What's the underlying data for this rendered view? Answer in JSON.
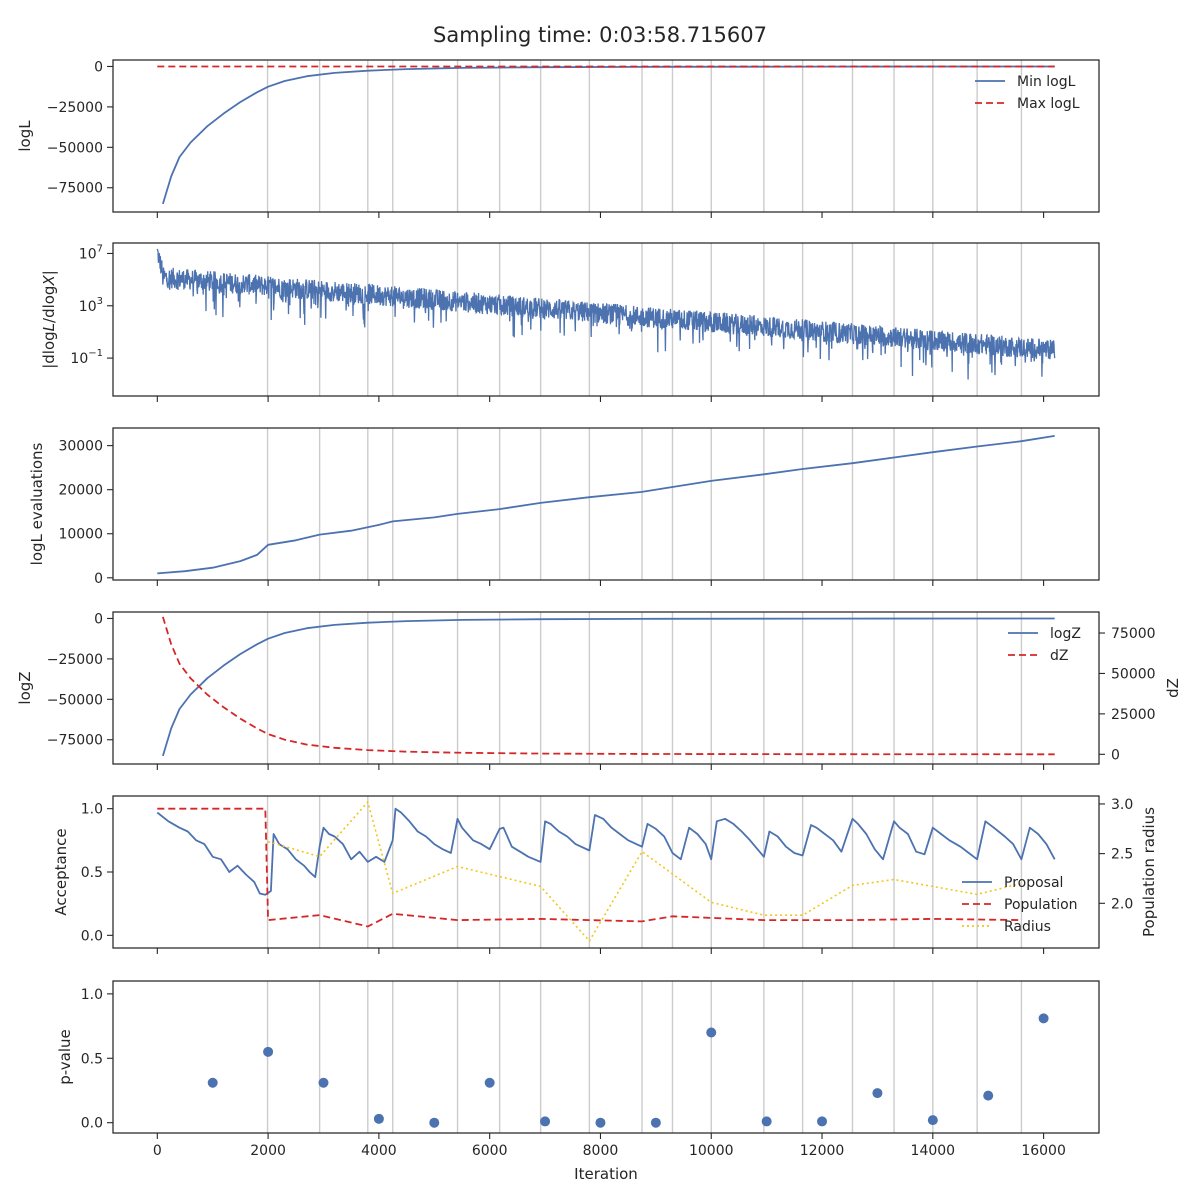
{
  "title": "Sampling time: 0:03:58.715607",
  "colors": {
    "blue": "#4c72b0",
    "red": "#d62728",
    "yellow": "#f5c518",
    "grid": "#cccccc",
    "axis": "#262626"
  },
  "x_axis": {
    "label": "Iteration",
    "range": [
      -800,
      17000
    ],
    "ticks": [
      0,
      2000,
      4000,
      6000,
      8000,
      10000,
      12000,
      14000,
      16000
    ],
    "tick_labels": [
      "0",
      "2000",
      "4000",
      "6000",
      "8000",
      "10000",
      "12000",
      "14000",
      "16000"
    ]
  },
  "vertical_markers": [
    1990,
    2930,
    3800,
    4250,
    5420,
    6180,
    6920,
    7800,
    8750,
    9300,
    10000,
    10950,
    11650,
    12550,
    13300,
    14000,
    14800,
    15600
  ],
  "chart_data": [
    {
      "type": "line",
      "ylabel": "logL",
      "ylim": [
        -90000,
        4000
      ],
      "yticks": [
        0,
        -25000,
        -50000,
        -75000
      ],
      "ytick_labels": [
        "0",
        "−25000",
        "−50000",
        "−75000"
      ],
      "legend_position": "top-right",
      "series": [
        {
          "name": "Min logL",
          "style": "solid",
          "color": "#4c72b0",
          "x": [
            100,
            250,
            400,
            600,
            900,
            1200,
            1500,
            1800,
            2000,
            2300,
            2700,
            3200,
            3800,
            4500,
            5500,
            7000,
            9000,
            12000,
            16200
          ],
          "y": [
            -85000,
            -68000,
            -56000,
            -47000,
            -37000,
            -29000,
            -22000,
            -16000,
            -12500,
            -9000,
            -6000,
            -4000,
            -2600,
            -1600,
            -900,
            -450,
            -200,
            -80,
            -20
          ]
        },
        {
          "name": "Max logL",
          "style": "dashed",
          "color": "#d62728",
          "x": [
            0,
            16200
          ],
          "y": [
            0,
            0
          ]
        }
      ]
    },
    {
      "type": "line",
      "ylabel": "|dlogL/dlogX|",
      "scale": "log",
      "ylim_log10": [
        -3.9,
        7.8
      ],
      "yticks_log10": [
        7,
        3,
        -1
      ],
      "series": [
        {
          "name": "",
          "style": "solid",
          "color": "#4c72b0",
          "kind": "noisy-trend",
          "x_start": 0,
          "x_end": 16200,
          "trend_log10_start": 5.2,
          "trend_log10_end": -0.4,
          "spike_log10_start": 7.1
        }
      ]
    },
    {
      "type": "line",
      "ylabel": "logL evaluations",
      "ylim": [
        -500,
        34000
      ],
      "yticks": [
        0,
        10000,
        20000,
        30000
      ],
      "ytick_labels": [
        "0",
        "10000",
        "20000",
        "30000"
      ],
      "series": [
        {
          "name": "",
          "style": "solid",
          "color": "#4c72b0",
          "x": [
            0,
            500,
            1000,
            1500,
            1800,
            2000,
            2500,
            2930,
            3500,
            4000,
            4250,
            5000,
            5420,
            6180,
            6920,
            7800,
            8750,
            9300,
            10000,
            10950,
            11650,
            12550,
            13300,
            14000,
            14800,
            15600,
            16200
          ],
          "y": [
            1000,
            1500,
            2300,
            3800,
            5200,
            7500,
            8500,
            9800,
            10700,
            12000,
            12800,
            13700,
            14500,
            15600,
            17000,
            18300,
            19500,
            20600,
            22000,
            23500,
            24700,
            26000,
            27300,
            28500,
            29800,
            31000,
            32200
          ]
        }
      ]
    },
    {
      "type": "line",
      "ylabel": "logZ",
      "ylabel_right": "dZ",
      "ylim": [
        -90000,
        4000
      ],
      "yticks": [
        0,
        -25000,
        -50000,
        -75000
      ],
      "ytick_labels": [
        "0",
        "−25000",
        "−50000",
        "−75000"
      ],
      "ylim_right": [
        -6000,
        88000
      ],
      "yticks_right": [
        0,
        25000,
        50000,
        75000
      ],
      "ytick_labels_right": [
        "0",
        "25000",
        "50000",
        "75000"
      ],
      "legend_position": "top-right",
      "series": [
        {
          "name": "logZ",
          "style": "solid",
          "color": "#4c72b0",
          "axis": "left",
          "x": [
            100,
            250,
            400,
            600,
            900,
            1200,
            1500,
            1800,
            2000,
            2300,
            2700,
            3200,
            3800,
            4500,
            5500,
            7000,
            9000,
            12000,
            16200
          ],
          "y": [
            -85000,
            -68000,
            -56000,
            -47000,
            -37000,
            -29000,
            -22000,
            -16000,
            -12500,
            -9000,
            -6000,
            -4000,
            -2600,
            -1600,
            -900,
            -450,
            -200,
            -80,
            -20
          ]
        },
        {
          "name": "dZ",
          "style": "dashed",
          "color": "#d62728",
          "axis": "right",
          "x": [
            100,
            250,
            400,
            600,
            900,
            1200,
            1500,
            1800,
            2000,
            2300,
            2700,
            3200,
            3800,
            4500,
            5500,
            7000,
            9000,
            12000,
            16200
          ],
          "y": [
            85000,
            68000,
            56000,
            47000,
            37000,
            29000,
            22000,
            16000,
            12500,
            9000,
            6000,
            4000,
            2600,
            1600,
            900,
            450,
            200,
            80,
            20
          ]
        }
      ]
    },
    {
      "type": "line",
      "ylabel": "Acceptance",
      "ylabel_right": "Population radius",
      "ylim": [
        -0.1,
        1.1
      ],
      "yticks": [
        0.0,
        0.5,
        1.0
      ],
      "ytick_labels": [
        "0.0",
        "0.5",
        "1.0"
      ],
      "ylim_right": [
        1.55,
        3.08
      ],
      "yticks_right": [
        2.0,
        2.5,
        3.0
      ],
      "ytick_labels_right": [
        "2.0",
        "2.5",
        "3.0"
      ],
      "legend_position": "lower-right",
      "series": [
        {
          "name": "Proposal",
          "style": "solid",
          "color": "#4c72b0",
          "axis": "left",
          "kind": "sawtooth",
          "x": [
            0,
            200,
            400,
            550,
            700,
            850,
            1000,
            1150,
            1300,
            1450,
            1600,
            1750,
            1850,
            1950,
            2050,
            2100,
            2200,
            2350,
            2500,
            2650,
            2750,
            2850,
            2930,
            3000,
            3100,
            3200,
            3350,
            3500,
            3650,
            3800,
            3950,
            4100,
            4250,
            4300,
            4400,
            4550,
            4700,
            4850,
            5000,
            5150,
            5300,
            5420,
            5500,
            5600,
            5700,
            5850,
            6000,
            6180,
            6250,
            6400,
            6550,
            6700,
            6920,
            7000,
            7100,
            7250,
            7400,
            7550,
            7800,
            7900,
            8050,
            8200,
            8350,
            8500,
            8750,
            8850,
            9000,
            9150,
            9300,
            9450,
            9600,
            9750,
            9900,
            10000,
            10100,
            10250,
            10400,
            10550,
            10700,
            10950,
            11050,
            11200,
            11350,
            11500,
            11650,
            11800,
            11900,
            12050,
            12200,
            12350,
            12550,
            12650,
            12800,
            12950,
            13100,
            13300,
            13400,
            13550,
            13700,
            13850,
            14000,
            14150,
            14300,
            14500,
            14650,
            14800,
            14950,
            15100,
            15300,
            15450,
            15600,
            15750,
            15900,
            16050,
            16200
          ],
          "y": [
            0.97,
            0.9,
            0.85,
            0.82,
            0.75,
            0.72,
            0.62,
            0.6,
            0.5,
            0.55,
            0.48,
            0.42,
            0.33,
            0.32,
            0.35,
            0.8,
            0.72,
            0.68,
            0.6,
            0.55,
            0.5,
            0.46,
            0.7,
            0.85,
            0.8,
            0.78,
            0.72,
            0.6,
            0.66,
            0.58,
            0.62,
            0.58,
            0.75,
            1.0,
            0.97,
            0.9,
            0.82,
            0.78,
            0.72,
            0.68,
            0.65,
            0.92,
            0.85,
            0.8,
            0.75,
            0.72,
            0.68,
            0.84,
            0.85,
            0.7,
            0.66,
            0.62,
            0.58,
            0.9,
            0.88,
            0.82,
            0.78,
            0.72,
            0.67,
            0.95,
            0.92,
            0.85,
            0.8,
            0.75,
            0.7,
            0.88,
            0.84,
            0.78,
            0.65,
            0.6,
            0.85,
            0.8,
            0.72,
            0.6,
            0.9,
            0.92,
            0.88,
            0.82,
            0.75,
            0.62,
            0.82,
            0.78,
            0.7,
            0.65,
            0.63,
            0.87,
            0.85,
            0.8,
            0.75,
            0.66,
            0.92,
            0.88,
            0.8,
            0.68,
            0.6,
            0.9,
            0.85,
            0.8,
            0.66,
            0.64,
            0.85,
            0.8,
            0.75,
            0.7,
            0.65,
            0.6,
            0.9,
            0.85,
            0.78,
            0.72,
            0.6,
            0.85,
            0.8,
            0.72,
            0.6
          ],
          "sawtooth_note": ""
        },
        {
          "name": "Population",
          "style": "dashed",
          "color": "#d62728",
          "axis": "left",
          "x": [
            0,
            1950,
            2000,
            2930,
            3800,
            4250,
            5420,
            6920,
            8750,
            9300,
            10950,
            12550,
            14000,
            15600
          ],
          "y": [
            1.0,
            1.0,
            0.12,
            0.16,
            0.07,
            0.17,
            0.12,
            0.13,
            0.11,
            0.15,
            0.12,
            0.12,
            0.13,
            0.12
          ]
        },
        {
          "name": "Radius",
          "style": "dotted",
          "color": "#f5c518",
          "axis": "right",
          "x": [
            2000,
            2930,
            3800,
            4250,
            5420,
            6920,
            7800,
            8750,
            10000,
            10950,
            11650,
            12550,
            13300,
            14800,
            15600
          ],
          "y": [
            2.62,
            2.47,
            3.02,
            2.1,
            2.37,
            2.17,
            1.62,
            2.52,
            2.01,
            1.88,
            1.88,
            2.18,
            2.24,
            2.09,
            2.2
          ]
        }
      ]
    },
    {
      "type": "scatter",
      "ylabel": "p-value",
      "ylim": [
        -0.08,
        1.1
      ],
      "yticks": [
        0.0,
        0.5,
        1.0
      ],
      "ytick_labels": [
        "0.0",
        "0.5",
        "1.0"
      ],
      "xlabel": "Iteration",
      "series": [
        {
          "name": "",
          "color": "#4c72b0",
          "x": [
            1000,
            2000,
            3000,
            4000,
            5000,
            6000,
            7000,
            8000,
            9000,
            10000,
            11000,
            12000,
            13000,
            14000,
            15000,
            16000
          ],
          "y": [
            0.31,
            0.55,
            0.31,
            0.03,
            0.0,
            0.31,
            0.01,
            0.0,
            0.0,
            0.7,
            0.01,
            0.01,
            0.23,
            0.02,
            0.21,
            0.81
          ]
        }
      ]
    }
  ]
}
